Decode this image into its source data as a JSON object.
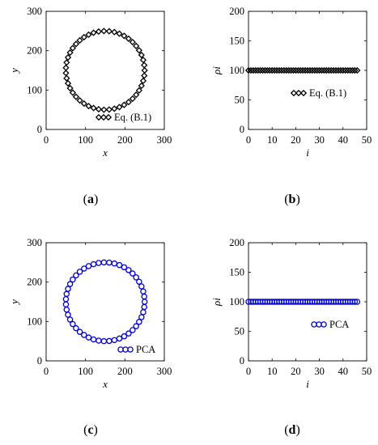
{
  "panels": [
    {
      "id": "a",
      "label": "(a)",
      "color": "#000000",
      "marker": "diamond"
    },
    {
      "id": "b",
      "label": "(b)",
      "color": "#000000",
      "marker": "diamond"
    },
    {
      "id": "c",
      "label": "(c)",
      "color": "#0000cc",
      "marker": "circle"
    },
    {
      "id": "d",
      "label": "(d)",
      "color": "#0000cc",
      "marker": "circle"
    }
  ],
  "chart_data": [
    {
      "panel": "a",
      "type": "scatter",
      "xlabel": "x",
      "ylabel": "y",
      "xlim": [
        0,
        300
      ],
      "ylim": [
        0,
        300
      ],
      "xticks": [
        0,
        100,
        200,
        300
      ],
      "yticks": [
        0,
        100,
        200,
        300
      ],
      "grid": false,
      "legend_position": "bottom-right",
      "series": [
        {
          "name": "Eq. (B.1)",
          "shape": "circle",
          "center": [
            150,
            150
          ],
          "radius": 100,
          "n_points": 47,
          "color": "#000000",
          "marker": "diamond"
        }
      ]
    },
    {
      "panel": "b",
      "type": "scatter",
      "xlabel": "i",
      "ylabel": "ρi",
      "xlim": [
        0,
        50
      ],
      "ylim": [
        0,
        200
      ],
      "xticks": [
        0,
        10,
        20,
        30,
        40,
        50
      ],
      "yticks": [
        0,
        50,
        100,
        150,
        200
      ],
      "grid": false,
      "legend_position": "right",
      "series": [
        {
          "name": "Eq. (B.1)",
          "x_range": [
            0,
            46
          ],
          "y_constant": 100,
          "color": "#000000",
          "marker": "diamond"
        }
      ]
    },
    {
      "panel": "c",
      "type": "scatter",
      "xlabel": "x",
      "ylabel": "y",
      "xlim": [
        0,
        300
      ],
      "ylim": [
        0,
        300
      ],
      "xticks": [
        0,
        100,
        200,
        300
      ],
      "yticks": [
        0,
        100,
        200,
        300
      ],
      "grid": false,
      "legend_position": "bottom-right",
      "series": [
        {
          "name": "PCA",
          "shape": "circle",
          "center": [
            150,
            150
          ],
          "radius": 100,
          "n_points": 47,
          "color": "#0000cc",
          "marker": "circle"
        }
      ]
    },
    {
      "panel": "d",
      "type": "scatter",
      "xlabel": "i",
      "ylabel": "ρi",
      "xlim": [
        0,
        50
      ],
      "ylim": [
        0,
        200
      ],
      "xticks": [
        0,
        10,
        20,
        30,
        40,
        50
      ],
      "yticks": [
        0,
        50,
        100,
        150,
        200
      ],
      "grid": false,
      "legend_position": "right",
      "series": [
        {
          "name": "PCA",
          "x_range": [
            0,
            46
          ],
          "y_constant": 100,
          "color": "#0000cc",
          "marker": "circle"
        }
      ]
    }
  ]
}
